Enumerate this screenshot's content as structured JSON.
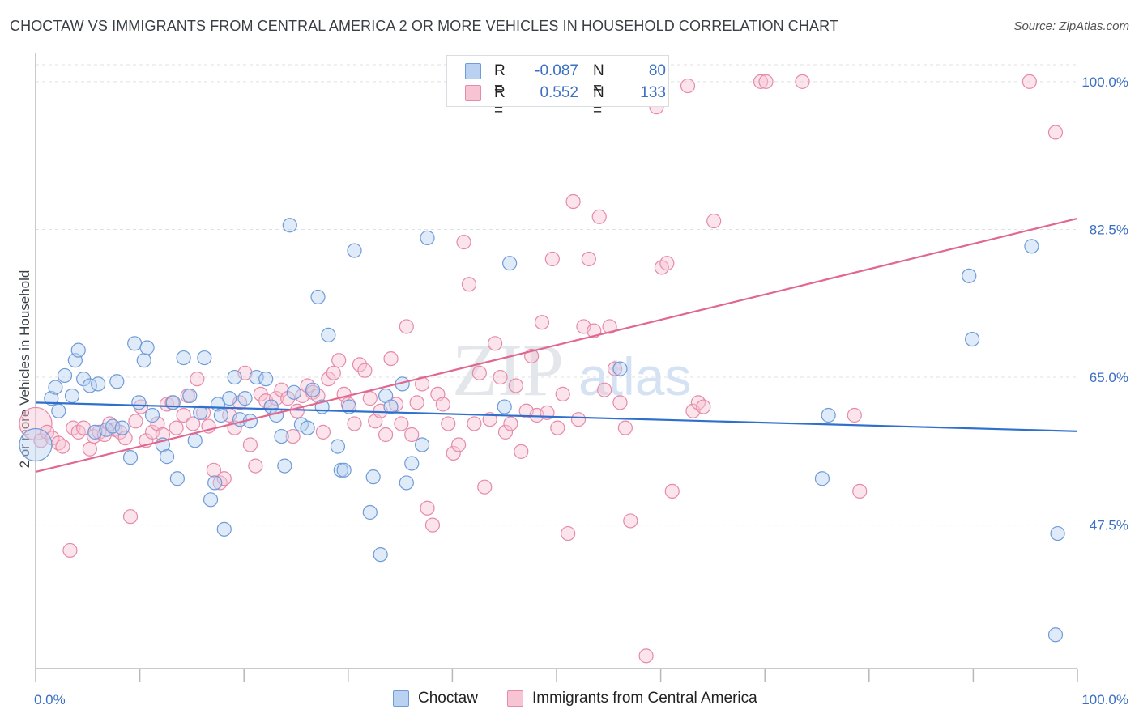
{
  "title": "CHOCTAW VS IMMIGRANTS FROM CENTRAL AMERICA 2 OR MORE VEHICLES IN HOUSEHOLD CORRELATION CHART",
  "source": "Source: ZipAtlas.com",
  "watermark": {
    "zip": "ZIP",
    "atlas": "atlas"
  },
  "legend": {
    "r_label": "R =",
    "n_label": "N =",
    "series": [
      {
        "name": "Choctaw",
        "r": "-0.087",
        "n": "80",
        "fill": "#b9d2f2",
        "stroke": "#6f9bd8"
      },
      {
        "name": "Immigrants from Central America",
        "r": "0.552",
        "n": "133",
        "fill": "#f7c4d3",
        "stroke": "#e68aa8"
      }
    ]
  },
  "colors": {
    "blue_line": "#2f6fce",
    "pink_line": "#e2678f",
    "tick_label": "#3a6fc4",
    "grid": "#dde0e4",
    "axis": "#b5b8bd"
  },
  "chart_data": {
    "type": "scatter",
    "title": "CHOCTAW VS IMMIGRANTS FROM CENTRAL AMERICA 2 OR MORE VEHICLES IN HOUSEHOLD CORRELATION CHART",
    "xlabel": "",
    "ylabel": "2 or more Vehicles in Household",
    "xlim": [
      0,
      100
    ],
    "ylim": [
      30.5,
      102
    ],
    "x_tick_labels": [
      "0.0%",
      "100.0%"
    ],
    "y_ticks": [
      47.5,
      65.0,
      82.5,
      100.0
    ],
    "y_tick_labels": [
      "47.5%",
      "65.0%",
      "82.5%",
      "100.0%"
    ],
    "grid": true,
    "legend_position": "top-center",
    "series": [
      {
        "name": "Choctaw",
        "trend": {
          "x": [
            0,
            100
          ],
          "y": [
            62.0,
            58.6
          ]
        },
        "points": [
          [
            0.0,
            57.0
          ],
          [
            1.5,
            62.5
          ],
          [
            1.9,
            63.8
          ],
          [
            2.2,
            61.0
          ],
          [
            2.8,
            65.2
          ],
          [
            3.5,
            62.8
          ],
          [
            3.8,
            67.0
          ],
          [
            4.1,
            68.2
          ],
          [
            4.6,
            64.8
          ],
          [
            5.2,
            64.0
          ],
          [
            5.7,
            58.5
          ],
          [
            6.0,
            64.2
          ],
          [
            6.8,
            58.8
          ],
          [
            7.4,
            59.2
          ],
          [
            7.8,
            64.5
          ],
          [
            8.3,
            59.0
          ],
          [
            9.1,
            55.5
          ],
          [
            9.5,
            69.0
          ],
          [
            9.9,
            62.0
          ],
          [
            10.4,
            67.0
          ],
          [
            10.7,
            68.5
          ],
          [
            11.2,
            60.5
          ],
          [
            12.2,
            57.0
          ],
          [
            12.6,
            55.6
          ],
          [
            13.2,
            62.0
          ],
          [
            13.6,
            53.0
          ],
          [
            14.2,
            67.3
          ],
          [
            14.8,
            62.8
          ],
          [
            15.3,
            57.5
          ],
          [
            15.8,
            60.8
          ],
          [
            16.2,
            67.3
          ],
          [
            16.8,
            50.5
          ],
          [
            17.2,
            52.5
          ],
          [
            17.5,
            61.8
          ],
          [
            17.8,
            60.5
          ],
          [
            18.1,
            47.0
          ],
          [
            18.6,
            62.5
          ],
          [
            19.1,
            65.0
          ],
          [
            19.6,
            60.0
          ],
          [
            20.1,
            62.5
          ],
          [
            20.6,
            59.8
          ],
          [
            21.2,
            65.0
          ],
          [
            22.1,
            64.8
          ],
          [
            22.6,
            61.5
          ],
          [
            23.1,
            60.5
          ],
          [
            23.6,
            58.0
          ],
          [
            23.9,
            54.5
          ],
          [
            24.4,
            83.0
          ],
          [
            24.8,
            63.2
          ],
          [
            25.5,
            59.4
          ],
          [
            26.1,
            59.0
          ],
          [
            26.6,
            63.5
          ],
          [
            27.1,
            74.5
          ],
          [
            27.5,
            61.5
          ],
          [
            28.1,
            70.0
          ],
          [
            29.0,
            56.8
          ],
          [
            29.3,
            54.0
          ],
          [
            29.6,
            54.0
          ],
          [
            30.1,
            61.5
          ],
          [
            30.6,
            80.0
          ],
          [
            32.1,
            49.0
          ],
          [
            32.4,
            53.2
          ],
          [
            33.1,
            44.0
          ],
          [
            33.6,
            62.8
          ],
          [
            34.1,
            61.5
          ],
          [
            35.2,
            64.2
          ],
          [
            35.6,
            52.5
          ],
          [
            36.1,
            54.8
          ],
          [
            37.1,
            57.0
          ],
          [
            37.6,
            81.5
          ],
          [
            45.0,
            61.5
          ],
          [
            45.5,
            78.5
          ],
          [
            56.1,
            66.0
          ],
          [
            75.5,
            53.0
          ],
          [
            76.1,
            60.5
          ],
          [
            89.6,
            77.0
          ],
          [
            89.9,
            69.5
          ],
          [
            95.6,
            80.5
          ],
          [
            97.9,
            34.5
          ],
          [
            98.1,
            46.5
          ]
        ]
      },
      {
        "name": "Immigrants from Central America",
        "trend": {
          "x": [
            0,
            100
          ],
          "y": [
            53.8,
            83.8
          ]
        },
        "points": [
          [
            0.0,
            59.5
          ],
          [
            0.5,
            57.5
          ],
          [
            1.1,
            58.5
          ],
          [
            1.6,
            57.8
          ],
          [
            2.2,
            57.2
          ],
          [
            2.6,
            56.8
          ],
          [
            3.3,
            44.5
          ],
          [
            3.6,
            59.0
          ],
          [
            4.1,
            58.5
          ],
          [
            4.6,
            59.0
          ],
          [
            5.2,
            56.5
          ],
          [
            5.6,
            58.0
          ],
          [
            6.1,
            58.5
          ],
          [
            6.6,
            58.2
          ],
          [
            7.1,
            59.5
          ],
          [
            7.6,
            58.8
          ],
          [
            8.1,
            58.5
          ],
          [
            8.6,
            57.8
          ],
          [
            9.1,
            48.5
          ],
          [
            9.6,
            59.8
          ],
          [
            10.1,
            61.5
          ],
          [
            10.6,
            57.5
          ],
          [
            11.2,
            58.5
          ],
          [
            11.7,
            59.5
          ],
          [
            12.2,
            58.2
          ],
          [
            12.6,
            61.8
          ],
          [
            13.1,
            62.0
          ],
          [
            13.5,
            59.0
          ],
          [
            14.2,
            60.5
          ],
          [
            14.6,
            62.8
          ],
          [
            15.1,
            59.5
          ],
          [
            15.5,
            64.8
          ],
          [
            16.1,
            60.8
          ],
          [
            16.6,
            59.2
          ],
          [
            17.1,
            54.0
          ],
          [
            17.7,
            52.5
          ],
          [
            18.1,
            53.0
          ],
          [
            18.6,
            60.5
          ],
          [
            19.1,
            59.0
          ],
          [
            19.6,
            62.0
          ],
          [
            20.1,
            65.5
          ],
          [
            20.6,
            57.0
          ],
          [
            21.1,
            54.5
          ],
          [
            21.6,
            63.0
          ],
          [
            22.1,
            62.2
          ],
          [
            22.6,
            61.5
          ],
          [
            23.1,
            62.5
          ],
          [
            23.6,
            63.5
          ],
          [
            24.2,
            62.5
          ],
          [
            24.7,
            58.0
          ],
          [
            25.1,
            61.0
          ],
          [
            25.6,
            62.8
          ],
          [
            26.1,
            64.0
          ],
          [
            26.6,
            63.2
          ],
          [
            27.1,
            62.8
          ],
          [
            27.6,
            58.5
          ],
          [
            28.1,
            64.8
          ],
          [
            28.6,
            65.5
          ],
          [
            29.1,
            67.0
          ],
          [
            29.6,
            63.0
          ],
          [
            30.0,
            61.8
          ],
          [
            30.6,
            59.5
          ],
          [
            31.1,
            66.5
          ],
          [
            31.6,
            65.8
          ],
          [
            32.1,
            62.5
          ],
          [
            32.6,
            59.8
          ],
          [
            33.1,
            61.0
          ],
          [
            33.6,
            58.2
          ],
          [
            34.1,
            67.2
          ],
          [
            34.6,
            61.8
          ],
          [
            35.1,
            59.5
          ],
          [
            35.6,
            71.0
          ],
          [
            36.1,
            58.2
          ],
          [
            36.6,
            62.0
          ],
          [
            37.1,
            64.2
          ],
          [
            37.6,
            49.5
          ],
          [
            38.1,
            47.5
          ],
          [
            38.6,
            63.0
          ],
          [
            39.1,
            61.8
          ],
          [
            39.6,
            59.5
          ],
          [
            40.1,
            56.0
          ],
          [
            40.6,
            57.0
          ],
          [
            41.1,
            81.0
          ],
          [
            41.6,
            76.0
          ],
          [
            42.1,
            59.5
          ],
          [
            42.6,
            65.5
          ],
          [
            43.1,
            52.0
          ],
          [
            43.6,
            60.0
          ],
          [
            44.1,
            69.0
          ],
          [
            44.6,
            65.0
          ],
          [
            45.1,
            58.5
          ],
          [
            45.6,
            59.5
          ],
          [
            46.1,
            64.0
          ],
          [
            46.6,
            56.2
          ],
          [
            47.1,
            61.0
          ],
          [
            47.6,
            67.5
          ],
          [
            48.1,
            60.5
          ],
          [
            48.6,
            71.5
          ],
          [
            49.1,
            60.8
          ],
          [
            49.6,
            79.0
          ],
          [
            50.1,
            59.0
          ],
          [
            50.6,
            63.0
          ],
          [
            51.1,
            46.5
          ],
          [
            51.6,
            85.8
          ],
          [
            52.1,
            60.0
          ],
          [
            52.6,
            71.0
          ],
          [
            53.1,
            79.0
          ],
          [
            53.6,
            70.5
          ],
          [
            54.1,
            84.0
          ],
          [
            54.6,
            63.5
          ],
          [
            55.1,
            71.0
          ],
          [
            55.6,
            66.0
          ],
          [
            56.1,
            62.0
          ],
          [
            56.6,
            59.0
          ],
          [
            57.1,
            48.0
          ],
          [
            58.6,
            32.0
          ],
          [
            59.1,
            100.0
          ],
          [
            59.6,
            97.0
          ],
          [
            60.1,
            78.0
          ],
          [
            60.6,
            78.5
          ],
          [
            61.1,
            51.5
          ],
          [
            62.6,
            99.5
          ],
          [
            63.1,
            61.0
          ],
          [
            63.6,
            62.0
          ],
          [
            64.1,
            61.5
          ],
          [
            65.1,
            83.5
          ],
          [
            69.6,
            100.0
          ],
          [
            70.1,
            100.0
          ],
          [
            73.6,
            100.0
          ],
          [
            78.6,
            60.5
          ],
          [
            79.1,
            51.5
          ],
          [
            95.4,
            100.0
          ],
          [
            97.9,
            94.0
          ]
        ]
      }
    ]
  }
}
